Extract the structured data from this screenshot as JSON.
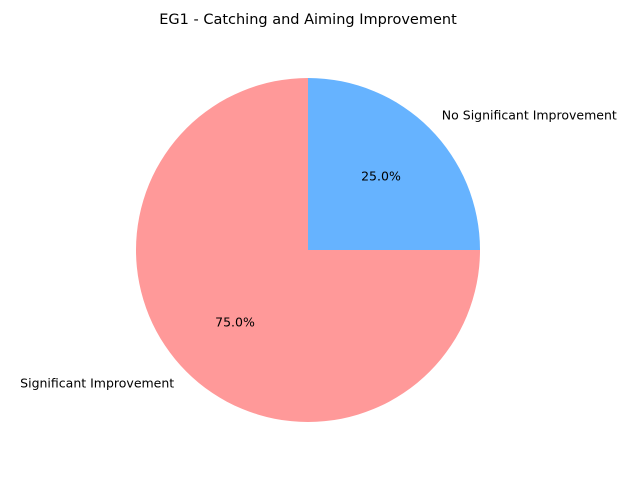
{
  "chart_data": {
    "type": "pie",
    "title": "EG1 - Catching and Aiming Improvement",
    "categories": [
      "Significant Improvement",
      "No Significant Improvement"
    ],
    "values": [
      75,
      25
    ],
    "value_labels": [
      "75.0%",
      "25.0%"
    ],
    "colors": [
      "#ff9999",
      "#66b3ff"
    ]
  }
}
